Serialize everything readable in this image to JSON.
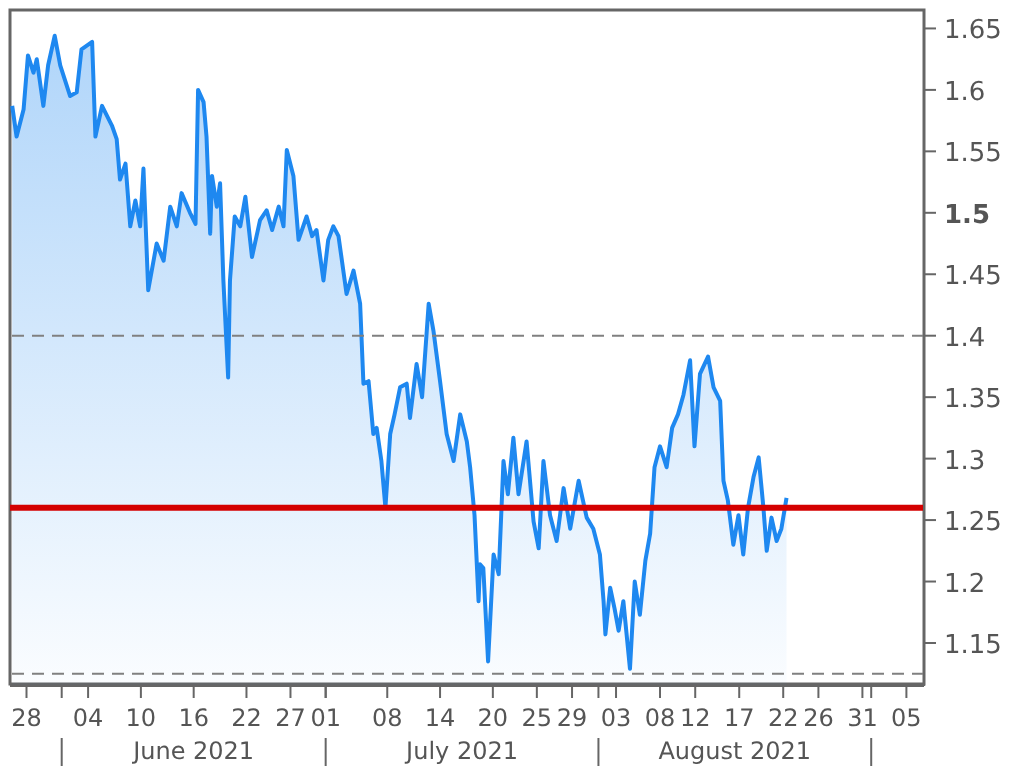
{
  "chart_data": {
    "type": "area",
    "grid": false,
    "legend": false,
    "marker": "none",
    "line_style": "solid",
    "x": [
      "2021-05-26T09:00",
      "2021-05-26T21:00",
      "2021-05-27T16:00",
      "2021-05-28T04:00",
      "2021-05-28T19:00",
      "2021-05-29T04:00",
      "2021-05-29T22:00",
      "2021-05-30T11:00",
      "2021-05-31T05:00",
      "2021-05-31T20:00",
      "2021-06-01T23:00",
      "2021-06-02T17:00",
      "2021-06-03T06:00",
      "2021-06-04T11:00",
      "2021-06-04T20:00",
      "2021-06-05T14:00",
      "2021-06-06T17:00",
      "2021-06-07T06:00",
      "2021-06-07T15:00",
      "2021-06-08T06:00",
      "2021-06-08T19:00",
      "2021-06-09T09:00",
      "2021-06-09T22:00",
      "2021-06-10T07:00",
      "2021-06-10T20:00",
      "2021-06-11T19:00",
      "2021-06-12T14:00",
      "2021-06-13T08:00",
      "2021-06-14T02:00",
      "2021-06-14T15:00",
      "2021-06-15T14:00",
      "2021-06-16T05:00",
      "2021-06-16T12:00",
      "2021-06-17T03:00",
      "2021-06-17T11:00",
      "2021-06-17T21:00",
      "2021-06-18T02:00",
      "2021-06-18T15:00",
      "2021-06-19T00:00",
      "2021-06-19T09:00",
      "2021-06-19T22:00",
      "2021-06-20T03:00",
      "2021-06-20T16:00",
      "2021-06-21T07:00",
      "2021-06-21T21:00",
      "2021-06-22T15:00",
      "2021-06-23T13:00",
      "2021-06-24T07:00",
      "2021-06-24T22:00",
      "2021-06-25T16:00",
      "2021-06-26T05:00",
      "2021-06-26T14:00",
      "2021-06-27T08:00",
      "2021-06-27T22:00",
      "2021-06-28T20:00",
      "2021-06-29T11:00",
      "2021-06-29T23:00",
      "2021-06-30T18:00",
      "2021-07-01T07:00",
      "2021-07-01T21:00",
      "2021-07-02T11:00",
      "2021-07-03T09:00",
      "2021-07-04T04:00",
      "2021-07-04T22:00",
      "2021-07-05T07:00",
      "2021-07-05T21:00",
      "2021-07-06T10:00",
      "2021-07-06T19:00",
      "2021-07-07T08:00",
      "2021-07-07T19:00",
      "2021-07-08T08:00",
      "2021-07-08T20:00",
      "2021-07-09T11:00",
      "2021-07-10T05:00",
      "2021-07-10T14:00",
      "2021-07-11T08:00",
      "2021-07-11T23:00",
      "2021-07-12T17:00",
      "2021-07-13T06:00",
      "2021-07-14T00:00",
      "2021-07-14T18:00",
      "2021-07-15T13:00",
      "2021-07-16T07:00",
      "2021-07-17T01:00",
      "2021-07-17T10:00",
      "2021-07-17T22:00",
      "2021-07-18T09:00",
      "2021-07-18T13:00",
      "2021-07-18T22:00",
      "2021-07-19T11:00",
      "2021-07-20T02:00",
      "2021-07-20T16:00",
      "2021-07-21T05:00",
      "2021-07-21T17:00",
      "2021-07-22T08:00",
      "2021-07-22T22:00",
      "2021-07-23T20:00",
      "2021-07-24T15:00",
      "2021-07-25T05:00",
      "2021-07-25T18:00",
      "2021-07-26T12:00",
      "2021-07-27T06:00",
      "2021-07-28T01:00",
      "2021-07-28T19:00",
      "2021-07-29T18:00",
      "2021-07-30T16:00",
      "2021-07-31T10:00",
      "2021-08-01T04:00",
      "2021-08-01T14:00",
      "2021-08-01T19:00",
      "2021-08-02T08:00",
      "2021-08-02T20:00",
      "2021-08-03T07:00",
      "2021-08-03T20:00",
      "2021-08-04T14:00",
      "2021-08-05T03:00",
      "2021-08-05T17:00",
      "2021-08-06T08:00",
      "2021-08-06T21:00",
      "2021-08-07T09:00",
      "2021-08-08T00:00",
      "2021-08-08T18:00",
      "2021-08-09T09:00",
      "2021-08-10T01:00",
      "2021-08-10T16:00",
      "2021-08-11T10:00",
      "2021-08-11T22:00",
      "2021-08-12T13:00",
      "2021-08-13T11:00",
      "2021-08-14T02:00",
      "2021-08-14T20:00",
      "2021-08-15T05:00",
      "2021-08-15T17:00",
      "2021-08-16T08:00",
      "2021-08-16T22:00",
      "2021-08-17T11:00",
      "2021-08-18T00:00",
      "2021-08-18T15:00",
      "2021-08-19T05:00",
      "2021-08-19T18:00",
      "2021-08-20T03:00",
      "2021-08-20T16:00",
      "2021-08-21T06:00",
      "2021-08-21T19:00",
      "2021-08-22T09:00"
    ],
    "series": [
      {
        "color": "#1e88f0",
        "values": [
          1.587,
          1.562,
          1.584,
          1.628,
          1.614,
          1.625,
          1.587,
          1.62,
          1.644,
          1.62,
          1.595,
          1.598,
          1.633,
          1.639,
          1.562,
          1.587,
          1.571,
          1.56,
          1.527,
          1.54,
          1.489,
          1.51,
          1.489,
          1.536,
          1.437,
          1.475,
          1.461,
          1.505,
          1.489,
          1.516,
          1.5,
          1.491,
          1.6,
          1.59,
          1.562,
          1.483,
          1.53,
          1.505,
          1.524,
          1.445,
          1.366,
          1.445,
          1.497,
          1.489,
          1.513,
          1.464,
          1.494,
          1.502,
          1.486,
          1.505,
          1.489,
          1.551,
          1.53,
          1.478,
          1.497,
          1.481,
          1.486,
          1.445,
          1.478,
          1.489,
          1.481,
          1.434,
          1.453,
          1.426,
          1.361,
          1.363,
          1.32,
          1.325,
          1.298,
          1.26,
          1.32,
          1.336,
          1.358,
          1.361,
          1.333,
          1.377,
          1.35,
          1.426,
          1.404,
          1.363,
          1.32,
          1.298,
          1.336,
          1.314,
          1.293,
          1.254,
          1.184,
          1.214,
          1.211,
          1.135,
          1.222,
          1.206,
          1.298,
          1.271,
          1.317,
          1.271,
          1.314,
          1.249,
          1.227,
          1.298,
          1.254,
          1.233,
          1.276,
          1.243,
          1.282,
          1.252,
          1.243,
          1.222,
          1.184,
          1.157,
          1.195,
          1.178,
          1.16,
          1.184,
          1.129,
          1.2,
          1.173,
          1.217,
          1.239,
          1.293,
          1.31,
          1.293,
          1.325,
          1.336,
          1.352,
          1.38,
          1.31,
          1.369,
          1.383,
          1.358,
          1.347,
          1.282,
          1.266,
          1.23,
          1.254,
          1.222,
          1.26,
          1.285,
          1.301,
          1.26,
          1.225,
          1.252,
          1.233,
          1.243,
          1.268
        ]
      }
    ],
    "xlim": [
      "2021-05-26T03:00",
      "2021-09-07"
    ],
    "xticks": [
      {
        "value": "2021-05-28",
        "label": "28"
      },
      {
        "value": "2021-06-01",
        "label": null
      },
      {
        "value": "2021-06-04",
        "label": "04"
      },
      {
        "value": "2021-06-10",
        "label": "10"
      },
      {
        "value": "2021-06-16",
        "label": "16"
      },
      {
        "value": "2021-06-22",
        "label": "22"
      },
      {
        "value": "2021-06-27",
        "label": "27"
      },
      {
        "value": "2021-07-01",
        "label": "01"
      },
      {
        "value": "2021-07-01",
        "label": null
      },
      {
        "value": "2021-07-08",
        "label": "08"
      },
      {
        "value": "2021-07-14",
        "label": "14"
      },
      {
        "value": "2021-07-20",
        "label": "20"
      },
      {
        "value": "2021-07-25",
        "label": "25"
      },
      {
        "value": "2021-07-29",
        "label": "29"
      },
      {
        "value": "2021-08-01",
        "label": null
      },
      {
        "value": "2021-08-03",
        "label": "03"
      },
      {
        "value": "2021-08-08",
        "label": "08"
      },
      {
        "value": "2021-08-12",
        "label": "12"
      },
      {
        "value": "2021-08-17",
        "label": "17"
      },
      {
        "value": "2021-08-22",
        "label": "22"
      },
      {
        "value": "2021-08-26",
        "label": "26"
      },
      {
        "value": "2021-08-31",
        "label": "31"
      },
      {
        "value": "2021-09-01",
        "label": null
      },
      {
        "value": "2021-09-05",
        "label": "05"
      }
    ],
    "ylim": [
      1.115,
      1.665
    ],
    "yticks": [
      1.15,
      1.2,
      1.25,
      1.3,
      1.35,
      1.4,
      1.45,
      1.5,
      1.55,
      1.6,
      1.65
    ],
    "ref_lines": [
      {
        "axis": "y",
        "value": 1.4,
        "color": "#808080",
        "line_style": "dashed"
      },
      {
        "axis": "y",
        "value": 1.125,
        "color": "#808080",
        "line_style": "dashed"
      },
      {
        "axis": "y",
        "value": 1.26,
        "color": "#d40000",
        "line_style": "solid"
      }
    ],
    "annotations": [
      "June 2021",
      "July 2021",
      "August 2021"
    ]
  }
}
